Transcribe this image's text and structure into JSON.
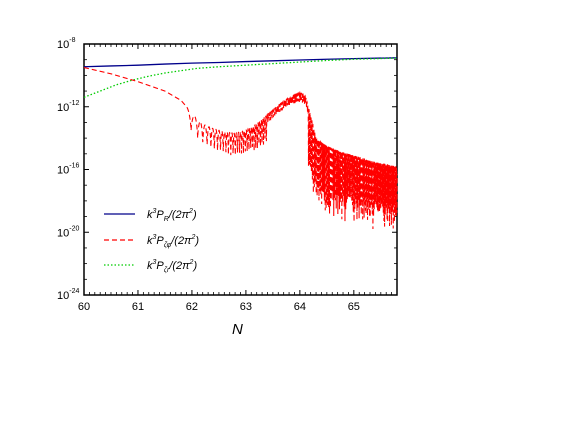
{
  "chart_data": {
    "type": "line",
    "xlabel": "N",
    "ylabel": "",
    "xlim": [
      60,
      65.8
    ],
    "ylim_log10": [
      -24,
      -8
    ],
    "yscale": "log",
    "x_ticks": [
      "60",
      "61",
      "62",
      "63",
      "64",
      "65"
    ],
    "y_ticks": [
      {
        "base": "10",
        "exp": "-8"
      },
      {
        "base": "10",
        "exp": "-12"
      },
      {
        "base": "10",
        "exp": "-16"
      },
      {
        "base": "10",
        "exp": "-20"
      },
      {
        "base": "10",
        "exp": "-24"
      }
    ],
    "legend_position": "lower-left",
    "series": [
      {
        "name_parts": {
          "k": "k",
          "pow": "3",
          "P": "P",
          "sub": "R",
          "tail": "/(2π",
          "pow2": "2",
          "close": ")"
        },
        "style": "solid",
        "color": "#00008b",
        "points_log10": [
          [
            60,
            -9.45
          ],
          [
            60.5,
            -9.4
          ],
          [
            61,
            -9.35
          ],
          [
            61.5,
            -9.28
          ],
          [
            62,
            -9.22
          ],
          [
            62.5,
            -9.18
          ],
          [
            63,
            -9.12
          ],
          [
            63.5,
            -9.07
          ],
          [
            64,
            -9.02
          ],
          [
            64.5,
            -8.97
          ],
          [
            65,
            -8.93
          ],
          [
            65.8,
            -8.88
          ]
        ]
      },
      {
        "name_parts": {
          "k": "k",
          "pow": "3",
          "P": "P",
          "sub": "ζφ",
          "tail": "/(2π",
          "pow2": "2",
          "close": ")"
        },
        "style": "dashed",
        "color": "#ff0000",
        "envelope_log10": [
          [
            60,
            -9.5
          ],
          [
            60.5,
            -9.9
          ],
          [
            61,
            -10.4
          ],
          [
            61.5,
            -11.0
          ],
          [
            61.8,
            -11.6
          ],
          [
            62.05,
            -12.6
          ],
          [
            62.2,
            -13.1
          ],
          [
            62.4,
            -13.4
          ],
          [
            62.6,
            -13.6
          ],
          [
            62.8,
            -13.7
          ],
          [
            63.0,
            -13.5
          ],
          [
            63.2,
            -13.1
          ],
          [
            63.4,
            -12.5
          ],
          [
            63.6,
            -11.9
          ],
          [
            63.8,
            -11.4
          ],
          [
            64.0,
            -11.1
          ],
          [
            64.1,
            -11.3
          ],
          [
            64.2,
            -12.5
          ],
          [
            64.3,
            -14.0
          ],
          [
            64.5,
            -14.5
          ],
          [
            64.8,
            -14.9
          ],
          [
            65.1,
            -15.2
          ],
          [
            65.4,
            -15.5
          ],
          [
            65.8,
            -15.8
          ]
        ]
      },
      {
        "name_parts": {
          "k": "k",
          "pow": "3",
          "P": "P",
          "sub": "ζr",
          "tail": "/(2π",
          "pow2": "2",
          "close": ")"
        },
        "style": "dotted",
        "color": "#00cc00",
        "points_log10": [
          [
            60,
            -11.4
          ],
          [
            60.3,
            -11.0
          ],
          [
            60.6,
            -10.6
          ],
          [
            60.9,
            -10.3
          ],
          [
            61.2,
            -10.05
          ],
          [
            61.5,
            -9.85
          ],
          [
            61.8,
            -9.7
          ],
          [
            62.1,
            -9.55
          ],
          [
            62.5,
            -9.45
          ],
          [
            63,
            -9.35
          ],
          [
            63.5,
            -9.25
          ],
          [
            64,
            -9.15
          ],
          [
            64.5,
            -9.05
          ],
          [
            65,
            -8.97
          ],
          [
            65.8,
            -8.9
          ]
        ]
      }
    ]
  }
}
